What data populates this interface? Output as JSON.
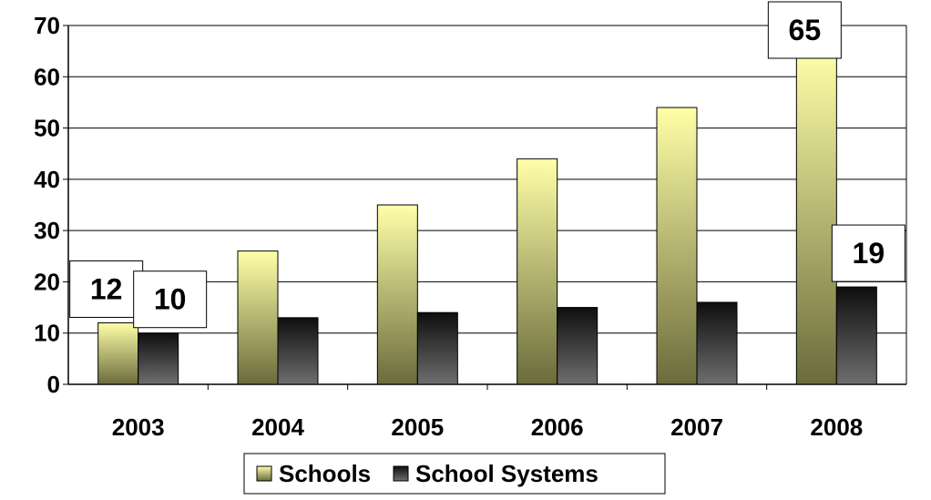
{
  "chart_data": {
    "type": "bar",
    "title": "",
    "xlabel": "",
    "ylabel": "",
    "categories": [
      "2003",
      "2004",
      "2005",
      "2006",
      "2007",
      "2008"
    ],
    "series": [
      {
        "name": "Schools",
        "values": [
          12,
          26,
          35,
          44,
          54,
          65
        ]
      },
      {
        "name": "School Systems",
        "values": [
          10,
          13,
          14,
          15,
          16,
          19
        ]
      }
    ],
    "ylim": [
      0,
      70
    ],
    "yticks": [
      0,
      10,
      20,
      30,
      40,
      50,
      60,
      70
    ],
    "grid": true,
    "legend": "bottom",
    "data_labels": [
      {
        "series": "Schools",
        "category": "2003",
        "text": "12"
      },
      {
        "series": "School Systems",
        "category": "2003",
        "text": "10"
      },
      {
        "series": "Schools",
        "category": "2008",
        "text": "65"
      },
      {
        "series": "School Systems",
        "category": "2008",
        "text": "19"
      }
    ],
    "colors": {
      "schools_top": "#ffffa8",
      "schools_bottom": "#6b6b3c",
      "systems_top": "#0e0e0e",
      "systems_bottom": "#6e6e6e",
      "grid": "#000000"
    }
  }
}
